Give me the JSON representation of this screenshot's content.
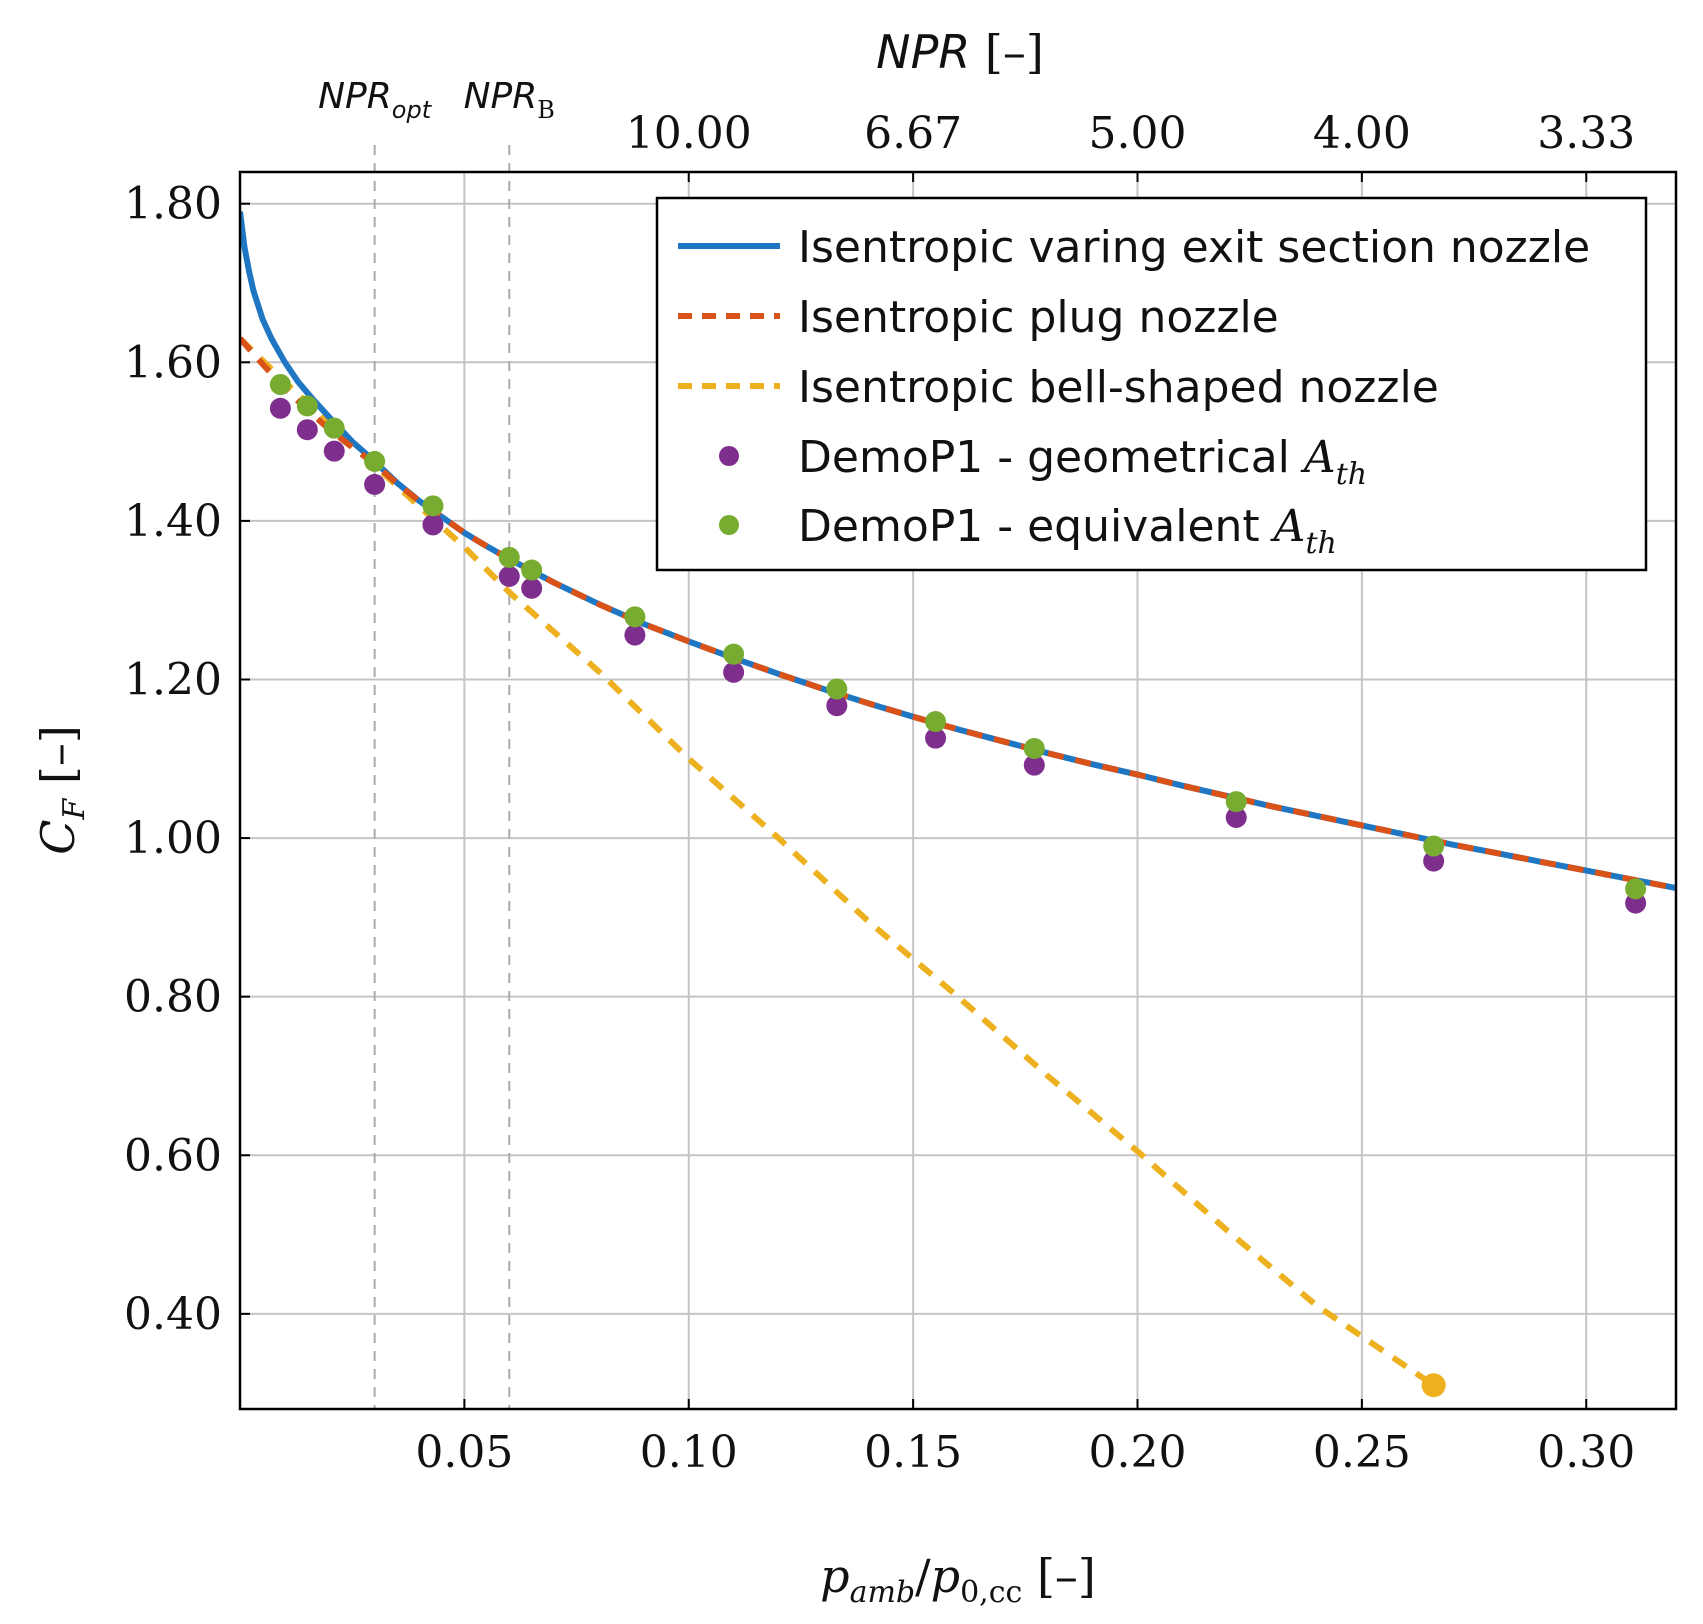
{
  "chart_data": {
    "type": "line",
    "xlabel": "p_amb/p_0,cc [–]",
    "xlabel_parts": {
      "p": "p",
      "amb": "amb",
      "slash": "/",
      "p0": "p",
      "cc": "0,cc",
      "unit": " [–]"
    },
    "ylabel": "C_F [–]",
    "ylabel_parts": {
      "c": "C",
      "sub": "F",
      "unit": " [–]"
    },
    "top_xlabel": "NPR [–]",
    "top_xlabel_parts": {
      "npr": "NPR",
      "unit": " [–]"
    },
    "xlim": [
      0.0,
      0.32
    ],
    "ylim": [
      0.28,
      1.84
    ],
    "x_ticks": [
      0.05,
      0.1,
      0.15,
      0.2,
      0.25,
      0.3
    ],
    "x_tick_labels": [
      "0.05",
      "0.10",
      "0.15",
      "0.20",
      "0.25",
      "0.30"
    ],
    "y_ticks": [
      0.4,
      0.6,
      0.8,
      1.0,
      1.2,
      1.4,
      1.6,
      1.8
    ],
    "y_tick_labels": [
      "0.40",
      "0.60",
      "0.80",
      "1.00",
      "1.20",
      "1.40",
      "1.60",
      "1.80"
    ],
    "top_ticks": [
      0.1,
      0.15,
      0.2,
      0.25,
      0.3
    ],
    "top_tick_labels": [
      "10.00",
      "6.67",
      "5.00",
      "4.00",
      "3.33"
    ],
    "grid": true,
    "markers": [
      {
        "x": 0.03,
        "name": "NPR",
        "sub": "opt"
      },
      {
        "x": 0.06,
        "name": "NPR",
        "sub": "B"
      }
    ],
    "series": [
      {
        "name": "Isentropic varing exit section nozzle",
        "style": "solid",
        "color": "#1f77c4",
        "x": [
          0.0,
          0.001,
          0.002,
          0.003,
          0.005,
          0.007,
          0.01,
          0.013,
          0.016,
          0.02,
          0.025,
          0.03,
          0.035,
          0.04,
          0.045,
          0.05,
          0.055,
          0.06,
          0.07,
          0.08,
          0.09,
          0.1,
          0.11,
          0.12,
          0.13,
          0.14,
          0.15,
          0.16,
          0.17,
          0.18,
          0.19,
          0.2,
          0.21,
          0.22,
          0.23,
          0.24,
          0.25,
          0.26,
          0.27,
          0.28,
          0.29,
          0.3,
          0.31,
          0.32
        ],
        "y": [
          1.79,
          1.745,
          1.715,
          1.69,
          1.655,
          1.63,
          1.6,
          1.575,
          1.555,
          1.53,
          1.5,
          1.475,
          1.448,
          1.425,
          1.405,
          1.385,
          1.368,
          1.352,
          1.322,
          1.295,
          1.27,
          1.248,
          1.227,
          1.207,
          1.188,
          1.17,
          1.153,
          1.137,
          1.122,
          1.107,
          1.093,
          1.08,
          1.066,
          1.053,
          1.04,
          1.028,
          1.016,
          1.004,
          0.992,
          0.981,
          0.97,
          0.959,
          0.948,
          0.937
        ]
      },
      {
        "name": "Isentropic plug nozzle",
        "style": "dashed",
        "color": "#d95319",
        "x": [
          0.0,
          0.005,
          0.01,
          0.015,
          0.02,
          0.025,
          0.03,
          0.035,
          0.04,
          0.045,
          0.05,
          0.055,
          0.06,
          0.07,
          0.08,
          0.09,
          0.1,
          0.11,
          0.12,
          0.13,
          0.14,
          0.15,
          0.16,
          0.17,
          0.18,
          0.19,
          0.2,
          0.21,
          0.22,
          0.23,
          0.24,
          0.25,
          0.26,
          0.27,
          0.28,
          0.29,
          0.3,
          0.31,
          0.32
        ],
        "y": [
          1.63,
          1.598,
          1.567,
          1.54,
          1.515,
          1.493,
          1.472,
          1.447,
          1.425,
          1.405,
          1.385,
          1.368,
          1.352,
          1.322,
          1.295,
          1.27,
          1.248,
          1.227,
          1.207,
          1.188,
          1.17,
          1.153,
          1.137,
          1.122,
          1.107,
          1.093,
          1.08,
          1.066,
          1.053,
          1.04,
          1.028,
          1.016,
          1.004,
          0.992,
          0.981,
          0.97,
          0.959,
          0.948,
          0.937
        ]
      },
      {
        "name": "Isentropic bell-shaped nozzle",
        "style": "dashed",
        "color": "#edb120",
        "x": [
          0.0,
          0.01,
          0.02,
          0.03,
          0.04,
          0.05,
          0.06,
          0.08,
          0.1,
          0.12,
          0.14,
          0.16,
          0.18,
          0.2,
          0.22,
          0.24,
          0.266
        ],
        "y": [
          1.63,
          1.575,
          1.522,
          1.47,
          1.418,
          1.367,
          1.31,
          1.21,
          1.1,
          1.0,
          0.895,
          0.8,
          0.7,
          0.605,
          0.505,
          0.41,
          0.31
        ],
        "end_marker": true
      },
      {
        "name": "DemoP1 - geometrical A_th",
        "legend_parts": {
          "text": "DemoP1 - geometrical ",
          "a": "A",
          "sub": "th"
        },
        "style": "markers",
        "color": "#7e2f8e",
        "x": [
          0.009,
          0.015,
          0.021,
          0.03,
          0.043,
          0.06,
          0.065,
          0.088,
          0.11,
          0.133,
          0.155,
          0.177,
          0.222,
          0.266,
          0.311
        ],
        "y": [
          1.542,
          1.515,
          1.488,
          1.446,
          1.395,
          1.33,
          1.315,
          1.256,
          1.209,
          1.167,
          1.126,
          1.092,
          1.026,
          0.971,
          0.918
        ]
      },
      {
        "name": "DemoP1 - equivalent A_th",
        "legend_parts": {
          "text": "DemoP1 - equivalent ",
          "a": "A",
          "sub": "th"
        },
        "style": "markers",
        "color": "#77ac30",
        "x": [
          0.009,
          0.015,
          0.021,
          0.03,
          0.043,
          0.06,
          0.065,
          0.088,
          0.11,
          0.133,
          0.155,
          0.177,
          0.222,
          0.266,
          0.311
        ],
        "y": [
          1.572,
          1.545,
          1.517,
          1.475,
          1.419,
          1.354,
          1.338,
          1.279,
          1.232,
          1.188,
          1.147,
          1.113,
          1.046,
          0.99,
          0.936
        ]
      }
    ]
  }
}
